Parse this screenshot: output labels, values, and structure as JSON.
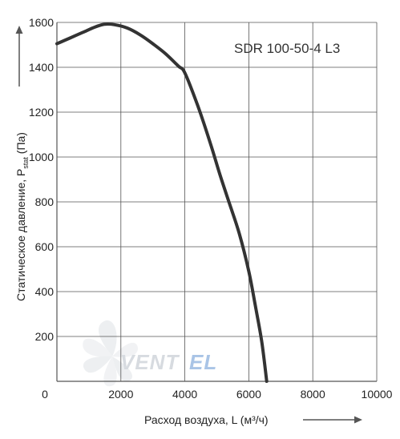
{
  "chart_data": {
    "type": "line",
    "title": "SDR 100-50-4 L3",
    "xlabel": "Расход воздуха, L (м³/ч)",
    "ylabel_main": "Статическое давление, P",
    "ylabel_sub": "stat",
    "ylabel_end": " (Па)",
    "xlim": [
      0,
      10000
    ],
    "ylim": [
      0,
      1600
    ],
    "x_origin_label": "0",
    "x_ticks": [
      2000,
      4000,
      6000,
      8000,
      10000
    ],
    "x_tick_labels": [
      "2000",
      "4000",
      "6000",
      "8000",
      "10000"
    ],
    "y_ticks": [
      200,
      400,
      600,
      800,
      1000,
      1200,
      1400,
      1600
    ],
    "y_tick_labels": [
      "200",
      "400",
      "600",
      "800",
      "1000",
      "1200",
      "1400",
      "1600"
    ],
    "grid": true,
    "series": [
      {
        "x": [
          0,
          400,
          800,
          1200,
          1500,
          1800,
          2200,
          2600,
          3000,
          3400,
          3800,
          4000,
          4400,
          4800,
          5100,
          5400,
          5700,
          6000,
          6200,
          6400,
          6560
        ],
        "y": [
          1505,
          1530,
          1555,
          1580,
          1592,
          1590,
          1575,
          1545,
          1505,
          1460,
          1405,
          1375,
          1230,
          1060,
          920,
          790,
          660,
          490,
          340,
          180,
          0
        ]
      }
    ],
    "line_color": "#333333"
  },
  "watermark": {
    "text_main": "VENT",
    "text_accent": "EL",
    "color_main": "#d7dbe0",
    "color_accent": "#a9c4e6"
  }
}
